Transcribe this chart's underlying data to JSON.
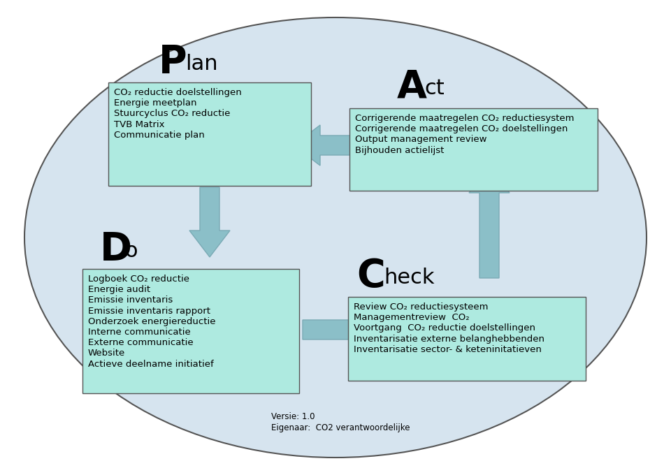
{
  "bg_color": "#d6e4ef",
  "ellipse_edge": "#555555",
  "box_bg": "#aeeae0",
  "box_edge": "#555555",
  "arrow_color": "#8bbfc8",
  "arrow_edge": "#7aaab5",
  "text_color": "#000000",
  "plan_box": [
    "CO₂ reductie doelstellingen",
    "Energie meetplan",
    "Stuurcyclus CO₂ reductie",
    "TVB Matrix",
    "Communicatie plan"
  ],
  "act_box": [
    "Corrigerende maatregelen CO₂ reductiesystem",
    "Corrigerende maatregelen CO₂ doelstellingen",
    "Output management review",
    "Bijhouden actielijst"
  ],
  "do_box": [
    "Logboek CO₂ reductie",
    "Energie audit",
    "Emissie inventaris",
    "Emissie inventaris rapport",
    "Onderzoek energiereductie",
    "Interne communicatie",
    "Externe communicatie",
    "Website",
    "Actieve deelname initiatief"
  ],
  "check_box": [
    "Review CO₂ reductiesysteem",
    "Managementreview  CO₂",
    "Voortgang  CO₂ reductie doelstellingen",
    "Inventarisatie externe belanghebbenden",
    "Inventarisatie sector- & keteninitatieven"
  ],
  "footer1": "Versie: 1.0",
  "footer2": "Eigenaar:  CO2 verantwoordelijke"
}
